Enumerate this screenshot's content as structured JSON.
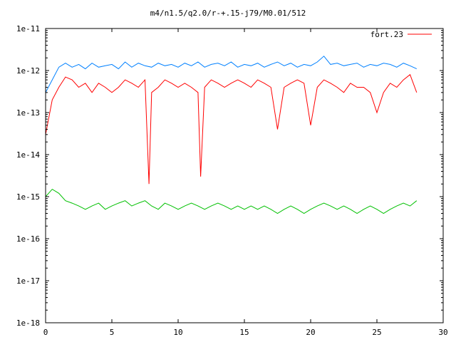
{
  "chart_data": {
    "type": "line",
    "title": "m4/n1.5/q2.0/r-+.15-j79/M0.01/512",
    "xlabel": "",
    "ylabel": "",
    "xlim": [
      0,
      30
    ],
    "ylim": [
      1e-18,
      1e-11
    ],
    "y_scale": "log",
    "grid": false,
    "legend_position": "top-right",
    "x_ticks": [
      "0",
      "5",
      "10",
      "15",
      "20",
      "25",
      "30"
    ],
    "y_ticks": [
      "1e-18",
      "1e-17",
      "1e-16",
      "1e-15",
      "1e-14",
      "1e-13",
      "1e-12",
      "1e-11"
    ],
    "series": [
      {
        "name": "fort.23",
        "color": "#ff0000",
        "x": [
          0.0,
          0.5,
          1.0,
          1.5,
          2.0,
          2.5,
          3.0,
          3.5,
          4.0,
          4.5,
          5.0,
          5.5,
          6.0,
          6.5,
          7.0,
          7.5,
          7.8,
          8.0,
          8.5,
          9.0,
          9.5,
          10.0,
          10.5,
          11.0,
          11.5,
          11.7,
          12.0,
          12.5,
          13.0,
          13.5,
          14.0,
          14.5,
          15.0,
          15.5,
          16.0,
          16.5,
          17.0,
          17.5,
          18.0,
          18.5,
          19.0,
          19.5,
          20.0,
          20.5,
          21.0,
          21.5,
          22.0,
          22.5,
          23.0,
          23.5,
          24.0,
          24.5,
          25.0,
          25.5,
          26.0,
          26.5,
          27.0,
          27.5,
          28.0
        ],
        "y": [
          3e-14,
          2e-13,
          4e-13,
          7e-13,
          6e-13,
          4e-13,
          5e-13,
          3e-13,
          5e-13,
          4e-13,
          3e-13,
          4e-13,
          6e-13,
          5e-13,
          4e-13,
          6e-13,
          2e-15,
          3e-13,
          4e-13,
          6e-13,
          5e-13,
          4e-13,
          5e-13,
          4e-13,
          3e-13,
          3e-15,
          4e-13,
          6e-13,
          5e-13,
          4e-13,
          5e-13,
          6e-13,
          5e-13,
          4e-13,
          6e-13,
          5e-13,
          4e-13,
          4e-14,
          4e-13,
          5e-13,
          6e-13,
          5e-13,
          5e-14,
          4e-13,
          6e-13,
          5e-13,
          4e-13,
          3e-13,
          5e-13,
          4e-13,
          4e-13,
          3e-13,
          1e-13,
          3e-13,
          5e-13,
          4e-13,
          6e-13,
          8e-13,
          3e-13
        ]
      },
      {
        "name": "",
        "color": "#0080ff",
        "x": [
          0.0,
          0.5,
          1.0,
          1.5,
          2.0,
          2.5,
          3.0,
          3.5,
          4.0,
          4.5,
          5.0,
          5.5,
          6.0,
          6.5,
          7.0,
          7.5,
          8.0,
          8.5,
          9.0,
          9.5,
          10.0,
          10.5,
          11.0,
          11.5,
          12.0,
          12.5,
          13.0,
          13.5,
          14.0,
          14.5,
          15.0,
          15.5,
          16.0,
          16.5,
          17.0,
          17.5,
          18.0,
          18.5,
          19.0,
          19.5,
          20.0,
          20.5,
          21.0,
          21.5,
          22.0,
          22.5,
          23.0,
          23.5,
          24.0,
          24.5,
          25.0,
          25.5,
          26.0,
          26.5,
          27.0,
          27.5,
          28.0
        ],
        "y": [
          3e-13,
          6e-13,
          1.2e-12,
          1.5e-12,
          1.2e-12,
          1.4e-12,
          1.1e-12,
          1.5e-12,
          1.2e-12,
          1.3e-12,
          1.4e-12,
          1.1e-12,
          1.6e-12,
          1.2e-12,
          1.5e-12,
          1.3e-12,
          1.2e-12,
          1.5e-12,
          1.3e-12,
          1.4e-12,
          1.2e-12,
          1.5e-12,
          1.3e-12,
          1.6e-12,
          1.2e-12,
          1.4e-12,
          1.5e-12,
          1.3e-12,
          1.6e-12,
          1.2e-12,
          1.4e-12,
          1.3e-12,
          1.5e-12,
          1.2e-12,
          1.4e-12,
          1.6e-12,
          1.3e-12,
          1.5e-12,
          1.2e-12,
          1.4e-12,
          1.3e-12,
          1.6e-12,
          2.2e-12,
          1.4e-12,
          1.5e-12,
          1.3e-12,
          1.4e-12,
          1.5e-12,
          1.2e-12,
          1.4e-12,
          1.3e-12,
          1.5e-12,
          1.4e-12,
          1.2e-12,
          1.5e-12,
          1.3e-12,
          1.1e-12
        ]
      },
      {
        "name": "",
        "color": "#00c000",
        "x": [
          0.0,
          0.5,
          1.0,
          1.5,
          2.0,
          2.5,
          3.0,
          3.5,
          4.0,
          4.5,
          5.0,
          5.5,
          6.0,
          6.5,
          7.0,
          7.5,
          8.0,
          8.5,
          9.0,
          9.5,
          10.0,
          10.5,
          11.0,
          11.5,
          12.0,
          12.5,
          13.0,
          13.5,
          14.0,
          14.5,
          15.0,
          15.5,
          16.0,
          16.5,
          17.0,
          17.5,
          18.0,
          18.5,
          19.0,
          19.5,
          20.0,
          20.5,
          21.0,
          21.5,
          22.0,
          22.5,
          23.0,
          23.5,
          24.0,
          24.5,
          25.0,
          25.5,
          26.0,
          26.5,
          27.0,
          27.5,
          28.0
        ],
        "y": [
          1e-15,
          1.5e-15,
          1.2e-15,
          8e-16,
          7e-16,
          6e-16,
          5e-16,
          6e-16,
          7e-16,
          5e-16,
          6e-16,
          7e-16,
          8e-16,
          6e-16,
          7e-16,
          8e-16,
          6e-16,
          5e-16,
          7e-16,
          6e-16,
          5e-16,
          6e-16,
          7e-16,
          6e-16,
          5e-16,
          6e-16,
          7e-16,
          6e-16,
          5e-16,
          6e-16,
          5e-16,
          6e-16,
          5e-16,
          6e-16,
          5e-16,
          4e-16,
          5e-16,
          6e-16,
          5e-16,
          4e-16,
          5e-16,
          6e-16,
          7e-16,
          6e-16,
          5e-16,
          6e-16,
          5e-16,
          4e-16,
          5e-16,
          6e-16,
          5e-16,
          4e-16,
          5e-16,
          6e-16,
          7e-16,
          6e-16,
          8e-16
        ]
      }
    ]
  }
}
